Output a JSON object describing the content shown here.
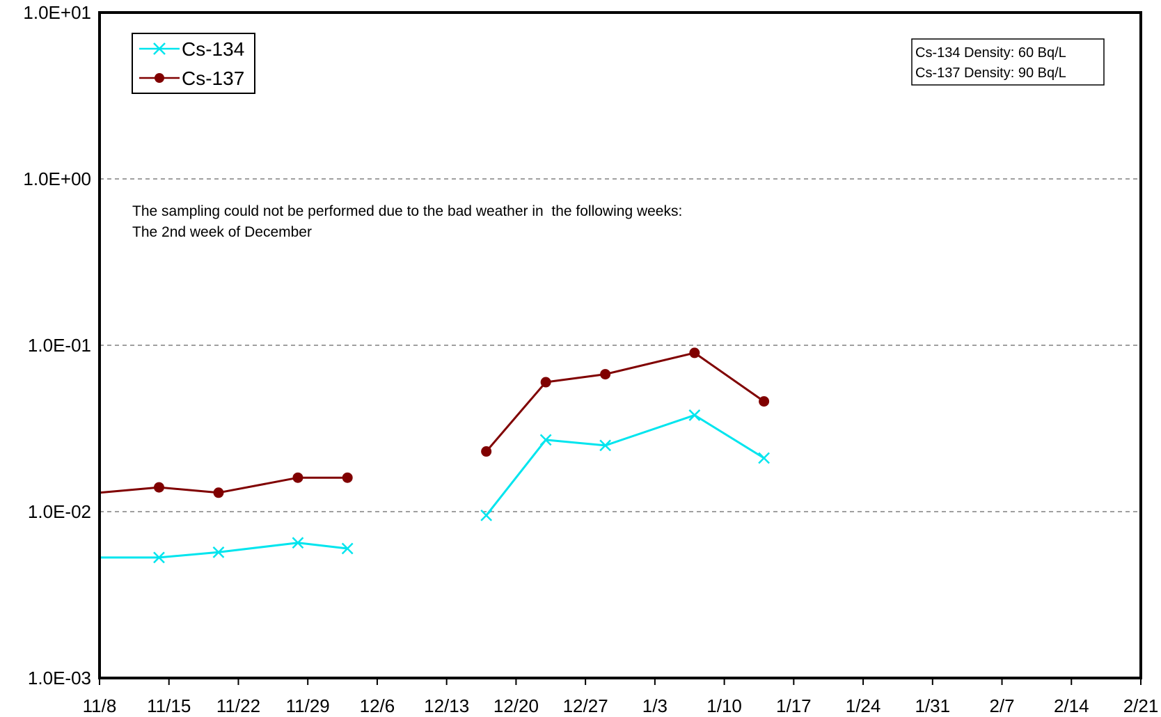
{
  "chart_data": {
    "type": "line",
    "title": "",
    "xlabel": "",
    "ylabel": "",
    "y_scale": "log",
    "ylim": [
      0.001,
      10
    ],
    "y_ticks": [
      "1.0E+01",
      "1.0E+00",
      "1.0E-01",
      "1.0E-02",
      "1.0E-03"
    ],
    "y_tick_values": [
      10,
      1,
      0.1,
      0.01,
      0.001
    ],
    "x_tick_labels": [
      "11/8",
      "11/15",
      "11/22",
      "11/29",
      "12/6",
      "12/13",
      "12/20",
      "12/27",
      "1/3",
      "1/10",
      "1/17",
      "1/24",
      "1/31",
      "2/7",
      "2/14",
      "2/21"
    ],
    "xlim": [
      "11/8",
      "2/21"
    ],
    "grid": "dashed horizontal at decades",
    "legend_position": "top-left",
    "series": [
      {
        "name": "Cs-134",
        "color": "#00E5EE",
        "marker": "x",
        "segments": [
          [
            {
              "x": "11/8",
              "y": 0.0053
            },
            {
              "x": "11/14",
              "y": 0.0053
            },
            {
              "x": "11/20",
              "y": 0.0057
            },
            {
              "x": "11/28",
              "y": 0.0065
            },
            {
              "x": "12/3",
              "y": 0.006
            }
          ],
          [
            {
              "x": "12/17",
              "y": 0.0095
            },
            {
              "x": "12/23",
              "y": 0.027
            },
            {
              "x": "12/29",
              "y": 0.025
            },
            {
              "x": "1/7",
              "y": 0.038
            },
            {
              "x": "1/14",
              "y": 0.021
            }
          ]
        ]
      },
      {
        "name": "Cs-137",
        "color": "#800000",
        "marker": "circle",
        "segments": [
          [
            {
              "x": "11/8",
              "y": 0.013
            },
            {
              "x": "11/14",
              "y": 0.014
            },
            {
              "x": "11/20",
              "y": 0.013
            },
            {
              "x": "11/28",
              "y": 0.016
            },
            {
              "x": "12/3",
              "y": 0.016
            }
          ],
          [
            {
              "x": "12/17",
              "y": 0.023
            },
            {
              "x": "12/23",
              "y": 0.06
            },
            {
              "x": "12/29",
              "y": 0.067
            },
            {
              "x": "1/7",
              "y": 0.09
            },
            {
              "x": "1/14",
              "y": 0.046
            }
          ]
        ]
      }
    ],
    "annotations": {
      "density_box": [
        "Cs-134 Density: 60 Bq/L",
        "Cs-137 Density: 90 Bq/L"
      ],
      "note_lines": [
        "The sampling could not be performed due to the bad weather in  the following weeks:",
        "The 2nd week of December"
      ]
    }
  }
}
